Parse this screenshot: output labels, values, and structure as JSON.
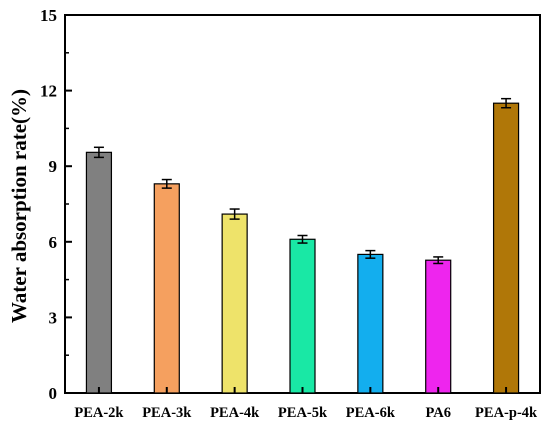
{
  "chart_data": {
    "type": "bar",
    "title": "",
    "xlabel": "",
    "ylabel": "Water absorption rate(%)",
    "ylim": [
      0,
      15
    ],
    "yticks": [
      0,
      3,
      6,
      9,
      12,
      15
    ],
    "grid": false,
    "categories": [
      "PEA-2k",
      "PEA-3k",
      "PEA-4k",
      "PEA-5k",
      "PEA-6k",
      "PA6",
      "PEA-p-4k"
    ],
    "values": [
      9.55,
      8.3,
      7.1,
      6.1,
      5.5,
      5.27,
      11.5
    ],
    "errors": [
      0.2,
      0.17,
      0.2,
      0.15,
      0.15,
      0.13,
      0.18
    ],
    "colors": [
      "#808080",
      "#f5a05f",
      "#eee36a",
      "#19e8a5",
      "#13aeee",
      "#ee25ee",
      "#b07708"
    ]
  }
}
